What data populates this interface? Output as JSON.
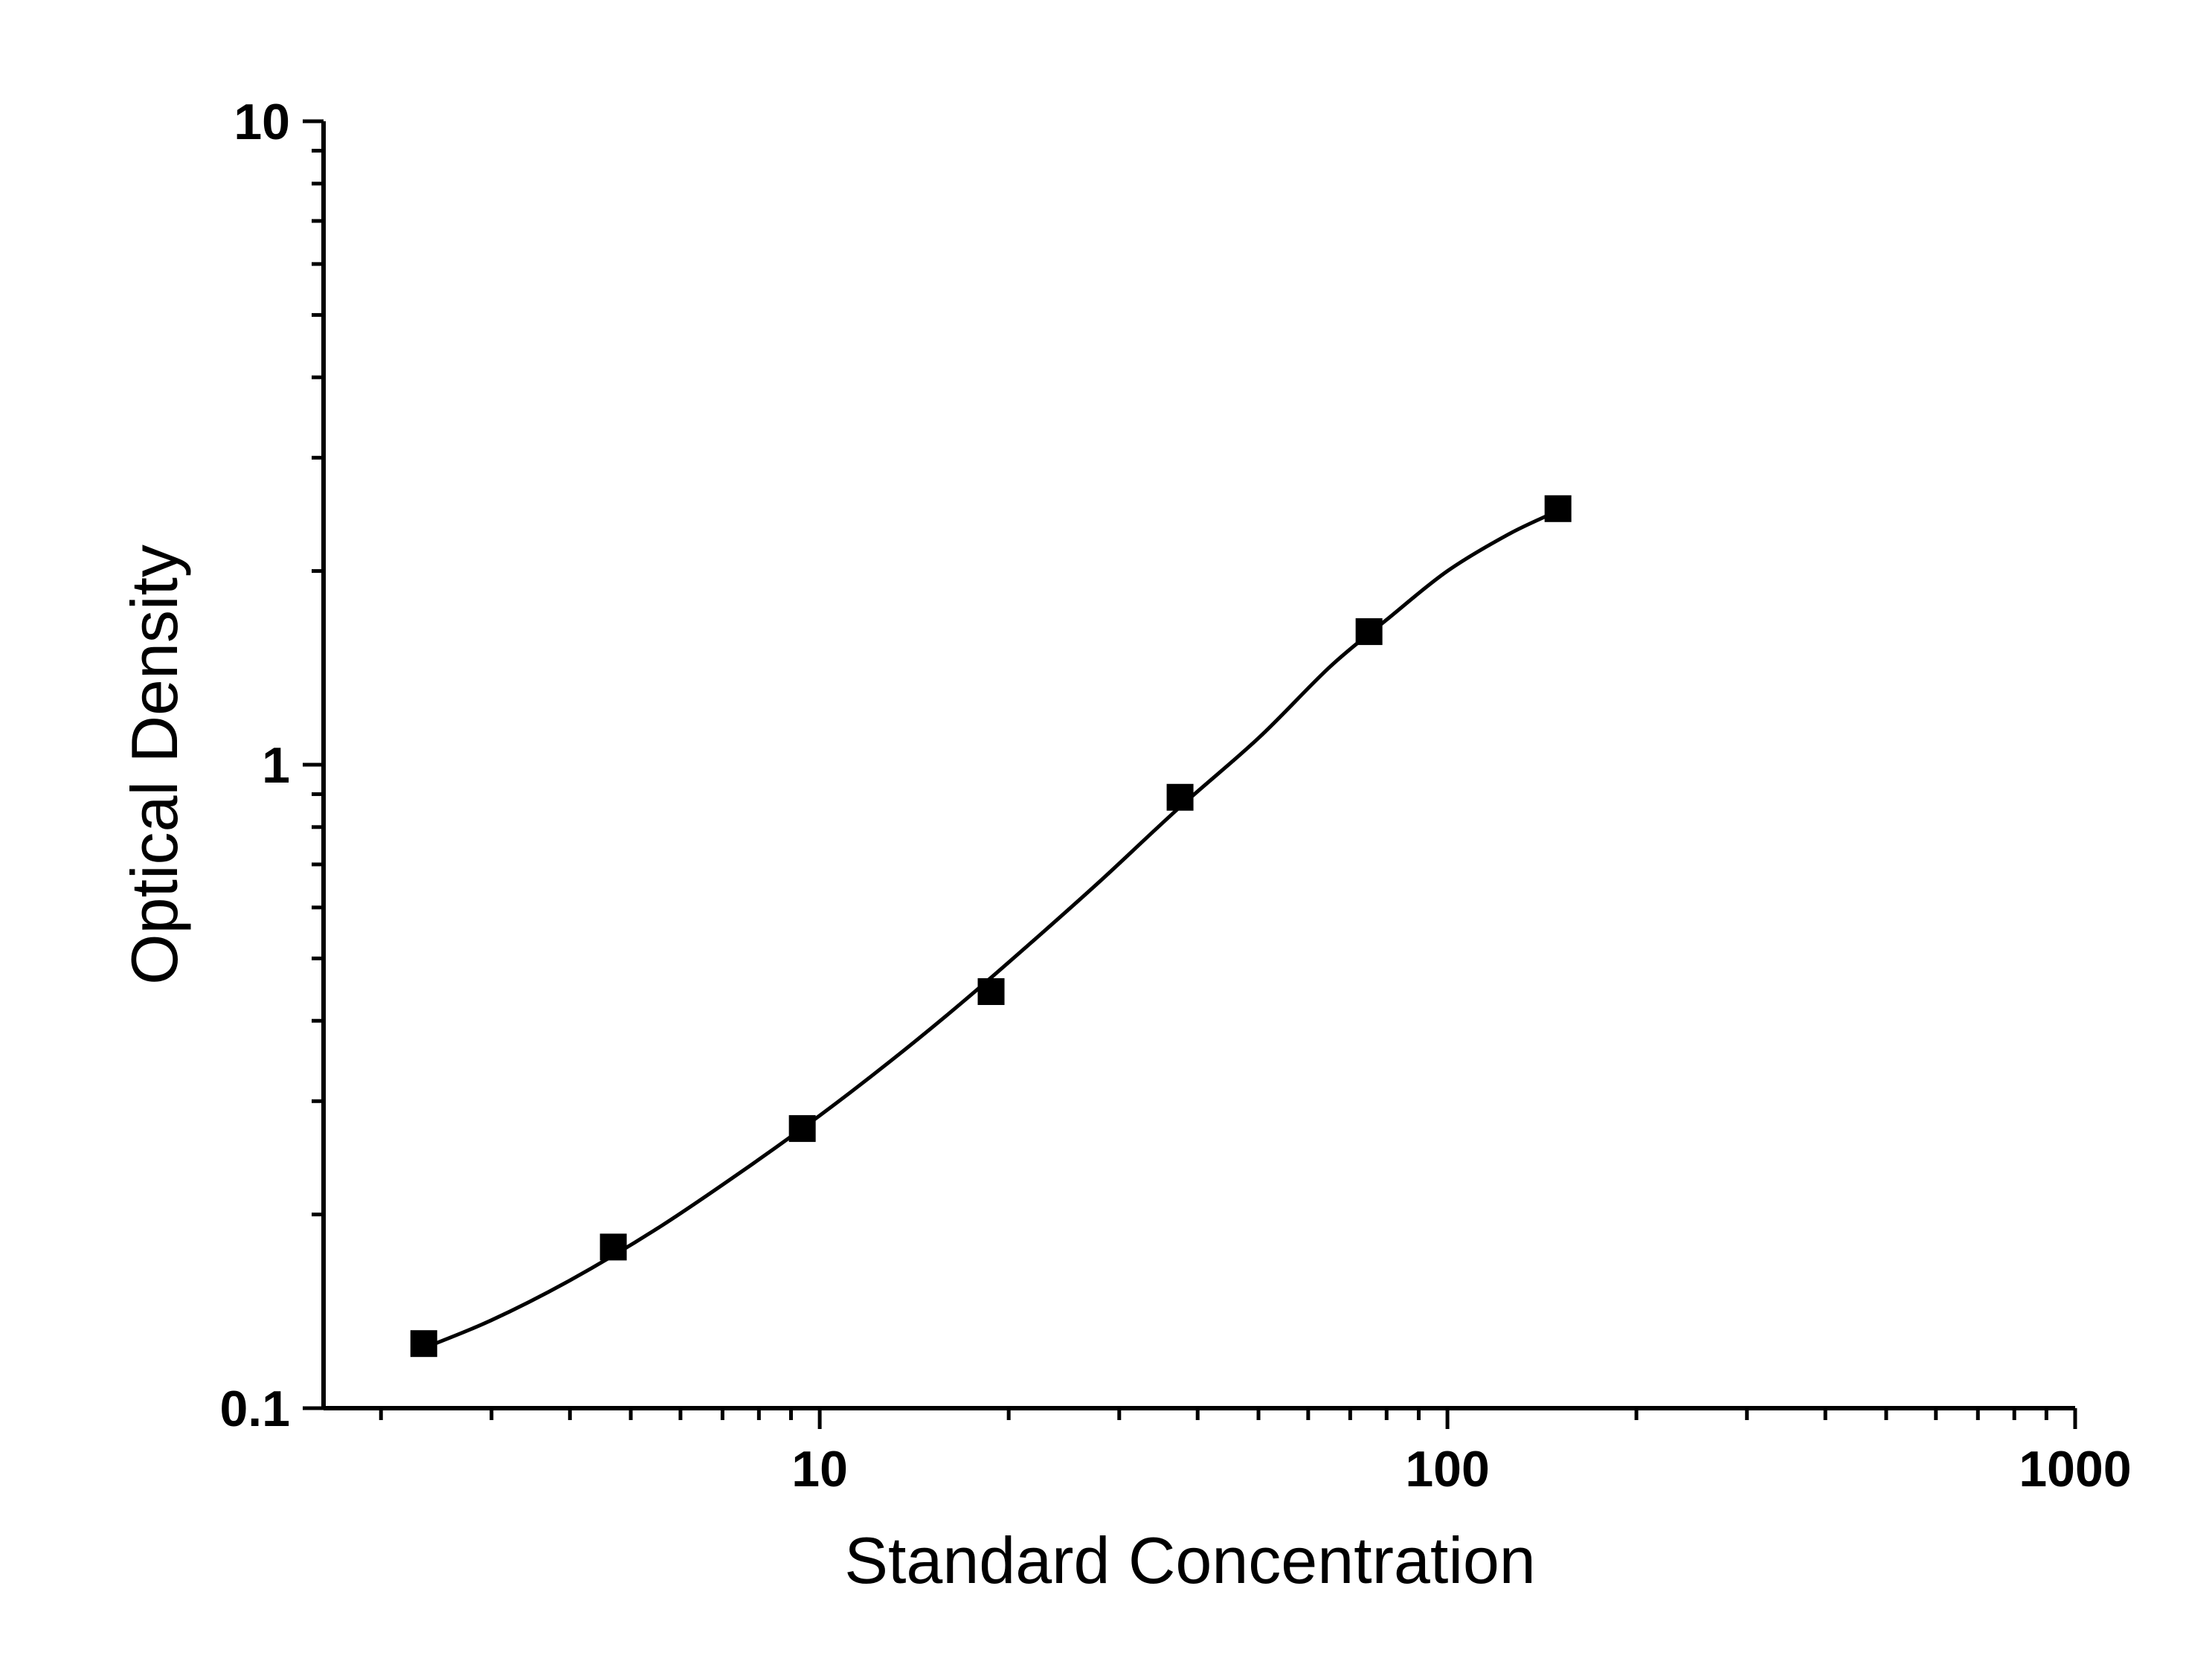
{
  "chart_data": {
    "type": "scatter",
    "title": "",
    "xlabel": "Standard Concentration",
    "ylabel": "Optical Density",
    "x_scale": "log",
    "y_scale": "log",
    "xlim": [
      1.62,
      1000
    ],
    "ylim": [
      0.1,
      10
    ],
    "x_ticks": [
      {
        "value": 10,
        "label": "10"
      },
      {
        "value": 100,
        "label": "100"
      },
      {
        "value": 1000,
        "label": "1000"
      }
    ],
    "y_ticks": [
      {
        "value": 0.1,
        "label": "0.1"
      },
      {
        "value": 1,
        "label": "1"
      },
      {
        "value": 10,
        "label": "10"
      }
    ],
    "grid": false,
    "legend": "none",
    "series": [
      {
        "marker": "square",
        "color": "#000000",
        "points": [
          {
            "x": 2.34,
            "y": 0.126
          },
          {
            "x": 4.69,
            "y": 0.178
          },
          {
            "x": 9.38,
            "y": 0.272
          },
          {
            "x": 18.75,
            "y": 0.444
          },
          {
            "x": 37.5,
            "y": 0.89
          },
          {
            "x": 75,
            "y": 1.61
          },
          {
            "x": 150,
            "y": 2.5
          }
        ]
      }
    ],
    "fit_curve": {
      "color": "#000000",
      "points": [
        {
          "x": 2.34,
          "y": 0.124
        },
        {
          "x": 3.0,
          "y": 0.137
        },
        {
          "x": 4.0,
          "y": 0.158
        },
        {
          "x": 5.5,
          "y": 0.19
        },
        {
          "x": 7.5,
          "y": 0.233
        },
        {
          "x": 10,
          "y": 0.285
        },
        {
          "x": 13,
          "y": 0.347
        },
        {
          "x": 17,
          "y": 0.43
        },
        {
          "x": 22,
          "y": 0.535
        },
        {
          "x": 28,
          "y": 0.66
        },
        {
          "x": 37.5,
          "y": 0.86
        },
        {
          "x": 50,
          "y": 1.1
        },
        {
          "x": 65,
          "y": 1.42
        },
        {
          "x": 80,
          "y": 1.68
        },
        {
          "x": 100,
          "y": 2.0
        },
        {
          "x": 125,
          "y": 2.28
        },
        {
          "x": 150,
          "y": 2.48
        }
      ]
    }
  }
}
